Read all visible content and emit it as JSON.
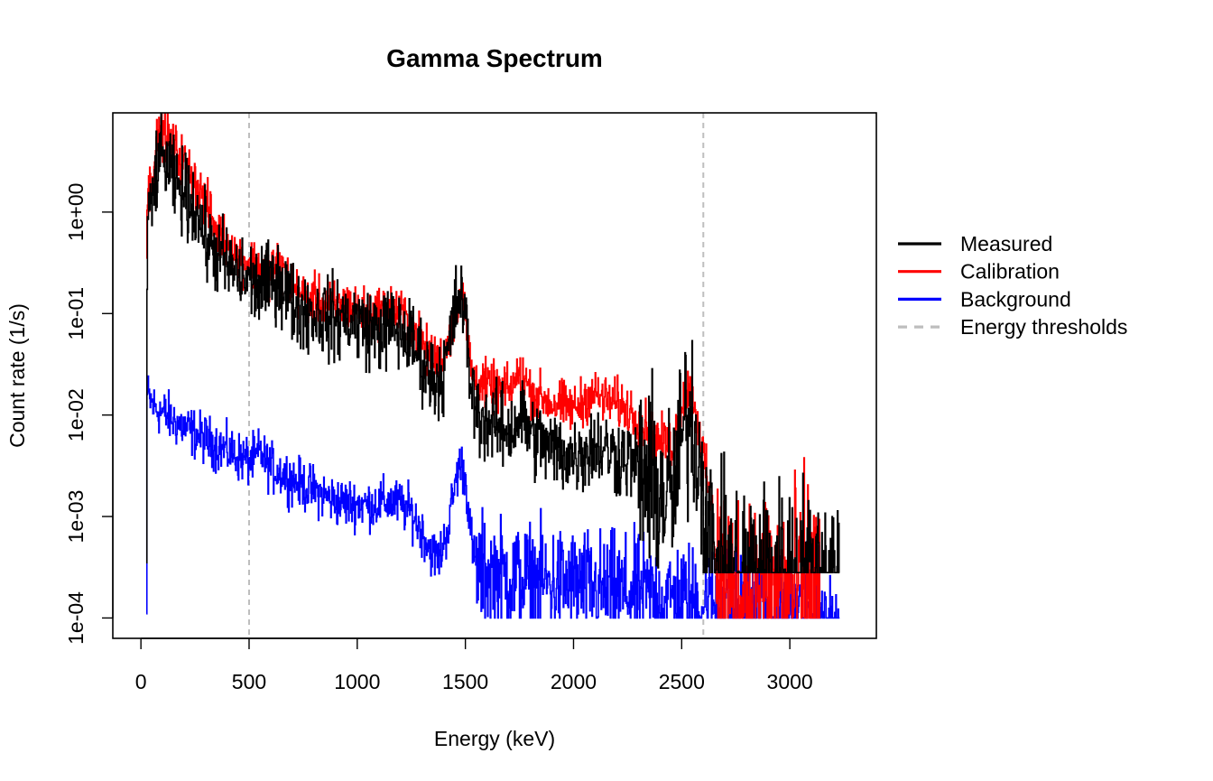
{
  "chart_data": {
    "type": "line",
    "title": "Gamma Spectrum",
    "xlabel": "Energy (keV)",
    "ylabel": "Count rate (1/s)",
    "xlim": [
      -130,
      3400
    ],
    "ylim": [
      6.3e-05,
      9.5
    ],
    "ylog": true,
    "grid": false,
    "legend_position": "outside-right",
    "x_ticks": [
      0,
      500,
      1000,
      1500,
      2000,
      2500,
      3000
    ],
    "x_tick_labels": [
      "0",
      "500",
      "1000",
      "1500",
      "2000",
      "2500",
      "3000"
    ],
    "y_ticks": [
      0.0001,
      0.001,
      0.01,
      0.1,
      1
    ],
    "y_tick_labels": [
      "1e-04",
      "1e-03",
      "1e-02",
      "1e-01",
      "1e+00"
    ],
    "thresholds": {
      "name": "Energy thresholds",
      "color": "#bebebe",
      "x": [
        500,
        2600
      ]
    },
    "series": [
      {
        "name": "Measured",
        "color": "#000000",
        "noise": 0.2,
        "noise_above": 2300,
        "noise_high": 0.45,
        "floor": 0.00028,
        "start": 25,
        "end": 3230,
        "points": [
          [
            25,
            0.00035
          ],
          [
            28,
            0.6
          ],
          [
            35,
            0.85
          ],
          [
            50,
            1.2
          ],
          [
            70,
            2.5
          ],
          [
            90,
            3.6
          ],
          [
            110,
            3.2
          ],
          [
            150,
            2.0
          ],
          [
            200,
            1.5
          ],
          [
            250,
            1.1
          ],
          [
            300,
            0.55
          ],
          [
            350,
            0.38
          ],
          [
            400,
            0.3
          ],
          [
            450,
            0.24
          ],
          [
            500,
            0.21
          ],
          [
            550,
            0.18
          ],
          [
            590,
            0.19
          ],
          [
            630,
            0.23
          ],
          [
            650,
            0.2
          ],
          [
            700,
            0.125
          ],
          [
            750,
            0.11
          ],
          [
            800,
            0.1
          ],
          [
            850,
            0.092
          ],
          [
            900,
            0.087
          ],
          [
            950,
            0.09
          ],
          [
            1000,
            0.082
          ],
          [
            1050,
            0.073
          ],
          [
            1100,
            0.068
          ],
          [
            1150,
            0.074
          ],
          [
            1200,
            0.066
          ],
          [
            1250,
            0.052
          ],
          [
            1300,
            0.035
          ],
          [
            1350,
            0.022
          ],
          [
            1400,
            0.026
          ],
          [
            1430,
            0.06
          ],
          [
            1460,
            0.13
          ],
          [
            1475,
            0.15
          ],
          [
            1490,
            0.12
          ],
          [
            1510,
            0.045
          ],
          [
            1530,
            0.016
          ],
          [
            1560,
            0.01
          ],
          [
            1600,
            0.0085
          ],
          [
            1650,
            0.0075
          ],
          [
            1700,
            0.007
          ],
          [
            1750,
            0.0095
          ],
          [
            1780,
            0.0085
          ],
          [
            1800,
            0.0065
          ],
          [
            1900,
            0.0045
          ],
          [
            2000,
            0.004
          ],
          [
            2050,
            0.0045
          ],
          [
            2100,
            0.005
          ],
          [
            2150,
            0.0045
          ],
          [
            2200,
            0.004
          ],
          [
            2250,
            0.0038
          ],
          [
            2300,
            0.003
          ],
          [
            2350,
            0.0022
          ],
          [
            2400,
            0.0017
          ],
          [
            2450,
            0.0015
          ],
          [
            2480,
            0.0025
          ],
          [
            2500,
            0.006
          ],
          [
            2530,
            0.01
          ],
          [
            2560,
            0.007
          ],
          [
            2590,
            0.0025
          ],
          [
            2620,
            0.001
          ],
          [
            2640,
            0.00045
          ],
          [
            2660,
            0.00028
          ],
          [
            3230,
            0.00028
          ]
        ]
      },
      {
        "name": "Calibration",
        "color": "#ff0000",
        "noise": 0.12,
        "noise_above": 2660,
        "noise_high": 0.55,
        "floor": 0.0001,
        "start": 25,
        "end": 3140,
        "points": [
          [
            25,
            0.35
          ],
          [
            28,
            1.3
          ],
          [
            40,
            1.8
          ],
          [
            60,
            3.5
          ],
          [
            80,
            5.5
          ],
          [
            95,
            6.5
          ],
          [
            120,
            5.5
          ],
          [
            150,
            4.5
          ],
          [
            200,
            3.0
          ],
          [
            250,
            2.0
          ],
          [
            300,
            1.2
          ],
          [
            350,
            0.65
          ],
          [
            400,
            0.48
          ],
          [
            450,
            0.36
          ],
          [
            500,
            0.32
          ],
          [
            550,
            0.29
          ],
          [
            590,
            0.26
          ],
          [
            630,
            0.32
          ],
          [
            660,
            0.26
          ],
          [
            700,
            0.18
          ],
          [
            750,
            0.145
          ],
          [
            800,
            0.135
          ],
          [
            850,
            0.125
          ],
          [
            900,
            0.115
          ],
          [
            950,
            0.125
          ],
          [
            1000,
            0.11
          ],
          [
            1050,
            0.097
          ],
          [
            1100,
            0.105
          ],
          [
            1150,
            0.12
          ],
          [
            1200,
            0.1
          ],
          [
            1250,
            0.075
          ],
          [
            1300,
            0.05
          ],
          [
            1350,
            0.035
          ],
          [
            1400,
            0.038
          ],
          [
            1430,
            0.065
          ],
          [
            1460,
            0.125
          ],
          [
            1475,
            0.15
          ],
          [
            1490,
            0.125
          ],
          [
            1510,
            0.06
          ],
          [
            1530,
            0.025
          ],
          [
            1560,
            0.021
          ],
          [
            1600,
            0.019
          ],
          [
            1650,
            0.018
          ],
          [
            1700,
            0.017
          ],
          [
            1750,
            0.025
          ],
          [
            1780,
            0.022
          ],
          [
            1800,
            0.017
          ],
          [
            1900,
            0.013
          ],
          [
            2000,
            0.0115
          ],
          [
            2050,
            0.014
          ],
          [
            2080,
            0.0165
          ],
          [
            2150,
            0.014
          ],
          [
            2200,
            0.013
          ],
          [
            2250,
            0.0115
          ],
          [
            2300,
            0.0095
          ],
          [
            2350,
            0.007
          ],
          [
            2400,
            0.0055
          ],
          [
            2450,
            0.005
          ],
          [
            2480,
            0.008
          ],
          [
            2500,
            0.013
          ],
          [
            2530,
            0.018
          ],
          [
            2550,
            0.015
          ],
          [
            2580,
            0.007
          ],
          [
            2610,
            0.0028
          ],
          [
            2640,
            0.001
          ],
          [
            2660,
            0.00035
          ],
          [
            2700,
            0.00018
          ],
          [
            3140,
            0.00018
          ]
        ]
      },
      {
        "name": "Background",
        "color": "#0000ff",
        "noise": 0.12,
        "noise_above": 1550,
        "noise_high": 0.28,
        "floor": 0.0001,
        "start": 25,
        "end": 3230,
        "points": [
          [
            25,
            0.00011
          ],
          [
            27,
            0.016
          ],
          [
            40,
            0.014
          ],
          [
            60,
            0.012
          ],
          [
            100,
            0.0105
          ],
          [
            150,
            0.0088
          ],
          [
            200,
            0.0075
          ],
          [
            250,
            0.0065
          ],
          [
            300,
            0.0057
          ],
          [
            350,
            0.005
          ],
          [
            400,
            0.0044
          ],
          [
            450,
            0.0039
          ],
          [
            500,
            0.0035
          ],
          [
            530,
            0.0037
          ],
          [
            550,
            0.0044
          ],
          [
            570,
            0.0036
          ],
          [
            600,
            0.003
          ],
          [
            650,
            0.0027
          ],
          [
            700,
            0.0023
          ],
          [
            750,
            0.002
          ],
          [
            800,
            0.0018
          ],
          [
            850,
            0.0016
          ],
          [
            900,
            0.0014
          ],
          [
            950,
            0.00135
          ],
          [
            1000,
            0.00135
          ],
          [
            1050,
            0.0013
          ],
          [
            1100,
            0.00135
          ],
          [
            1150,
            0.0014
          ],
          [
            1200,
            0.0013
          ],
          [
            1250,
            0.0011
          ],
          [
            1300,
            0.0007
          ],
          [
            1350,
            0.00042
          ],
          [
            1380,
            0.0004
          ],
          [
            1420,
            0.0008
          ],
          [
            1450,
            0.002
          ],
          [
            1470,
            0.0032
          ],
          [
            1490,
            0.003
          ],
          [
            1510,
            0.0015
          ],
          [
            1530,
            0.0005
          ],
          [
            1550,
            0.0003
          ],
          [
            1600,
            0.00028
          ],
          [
            1700,
            0.00025
          ],
          [
            1800,
            0.00023
          ],
          [
            1900,
            0.00022
          ],
          [
            2000,
            0.00021
          ],
          [
            2100,
            0.00019
          ],
          [
            2200,
            0.00018
          ],
          [
            2300,
            0.00017
          ],
          [
            2400,
            0.00016
          ],
          [
            2500,
            0.00015
          ],
          [
            2600,
            0.00014
          ],
          [
            2700,
            0.00013
          ],
          [
            2800,
            0.00012
          ],
          [
            2900,
            0.00012
          ],
          [
            3000,
            0.00011
          ],
          [
            3100,
            0.00011
          ],
          [
            3230,
            0.0001
          ]
        ]
      }
    ]
  }
}
